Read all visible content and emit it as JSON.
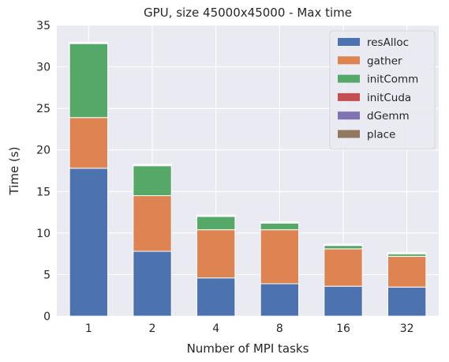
{
  "chart_data": {
    "type": "bar",
    "stacked": true,
    "title": "GPU, size 45000x45000 - Max time",
    "xlabel": "Number of MPI tasks",
    "ylabel": "Time (s)",
    "categories": [
      "1",
      "2",
      "4",
      "8",
      "16",
      "32"
    ],
    "ylim": [
      0,
      35
    ],
    "yticks": [
      0,
      5,
      10,
      15,
      20,
      25,
      30,
      35
    ],
    "grid": true,
    "legend_position": "top-right",
    "series": [
      {
        "name": "resAlloc",
        "color": "#4c72b0",
        "values": [
          17.8,
          7.8,
          4.6,
          3.9,
          3.6,
          3.5
        ]
      },
      {
        "name": "gather",
        "color": "#dd8452",
        "values": [
          6.1,
          6.7,
          5.8,
          6.5,
          4.5,
          3.7
        ]
      },
      {
        "name": "initComm",
        "color": "#55a868",
        "values": [
          8.9,
          3.6,
          1.6,
          0.8,
          0.4,
          0.3
        ]
      },
      {
        "name": "initCuda",
        "color": "#c44e52",
        "values": [
          0.05,
          0.05,
          0.05,
          0.05,
          0.05,
          0.05
        ]
      },
      {
        "name": "dGemm",
        "color": "#8172b3",
        "values": [
          0.02,
          0.02,
          0.02,
          0.02,
          0.02,
          0.02
        ]
      },
      {
        "name": "place",
        "color": "#937860",
        "values": [
          0.1,
          0.1,
          0.1,
          0.1,
          0.1,
          0.1
        ]
      }
    ]
  },
  "style": {
    "plot_background": "#eaeaf2",
    "grid_color": "#ffffff",
    "text_color": "#262626"
  }
}
